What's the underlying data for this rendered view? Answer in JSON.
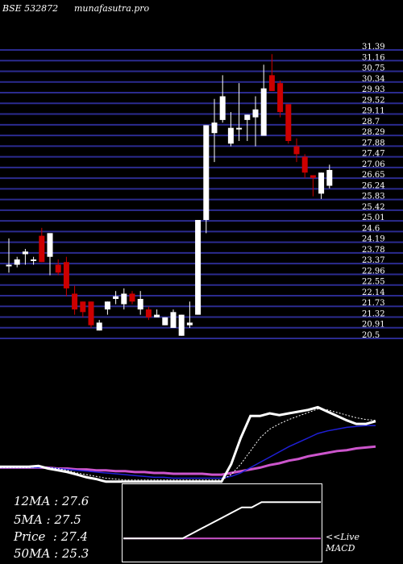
{
  "header": {
    "code": "BSE 532872",
    "site": "munafasutra.pro"
  },
  "chart_data": {
    "type": "candlestick",
    "ylim": [
      20.5,
      31.46
    ],
    "y_ticks": [
      "31.39",
      "31.16",
      "30.75",
      "30.34",
      "29.93",
      "29.52",
      "29.11",
      "28.7",
      "28.29",
      "27.88",
      "27.47",
      "27.06",
      "26.65",
      "26.24",
      "25.83",
      "25.42",
      "25.01",
      "24.6",
      "24.19",
      "23.78",
      "23.37",
      "22.96",
      "22.55",
      "22.14",
      "21.73",
      "21.32",
      "20.91",
      "20.5"
    ],
    "candles": [
      {
        "o": 23.3,
        "h": 24.3,
        "l": 23.0,
        "c": 23.3
      },
      {
        "o": 23.3,
        "h": 23.6,
        "l": 23.2,
        "c": 23.5
      },
      {
        "o": 23.7,
        "h": 23.9,
        "l": 23.3,
        "c": 23.8
      },
      {
        "o": 23.5,
        "h": 23.6,
        "l": 23.3,
        "c": 23.5
      },
      {
        "o": 24.4,
        "h": 24.7,
        "l": 23.4,
        "c": 23.4
      },
      {
        "o": 23.6,
        "h": 24.5,
        "l": 22.9,
        "c": 24.5
      },
      {
        "o": 23.3,
        "h": 23.5,
        "l": 22.9,
        "c": 23.0
      },
      {
        "o": 23.4,
        "h": 23.6,
        "l": 22.1,
        "c": 22.4
      },
      {
        "o": 22.2,
        "h": 22.5,
        "l": 21.4,
        "c": 21.6
      },
      {
        "o": 21.9,
        "h": 21.9,
        "l": 21.3,
        "c": 21.5
      },
      {
        "o": 21.9,
        "h": 21.9,
        "l": 20.9,
        "c": 21.0
      },
      {
        "o": 20.8,
        "h": 21.2,
        "l": 20.8,
        "c": 21.1
      },
      {
        "o": 21.6,
        "h": 21.9,
        "l": 21.4,
        "c": 21.9
      },
      {
        "o": 22.0,
        "h": 22.3,
        "l": 21.8,
        "c": 22.1
      },
      {
        "o": 21.8,
        "h": 22.4,
        "l": 21.6,
        "c": 22.2
      },
      {
        "o": 22.2,
        "h": 22.3,
        "l": 21.8,
        "c": 21.9
      },
      {
        "o": 21.6,
        "h": 22.3,
        "l": 21.4,
        "c": 22.0
      },
      {
        "o": 21.6,
        "h": 21.7,
        "l": 21.2,
        "c": 21.3
      },
      {
        "o": 21.3,
        "h": 21.6,
        "l": 21.3,
        "c": 21.4
      },
      {
        "o": 21.0,
        "h": 21.3,
        "l": 21.0,
        "c": 21.3
      },
      {
        "o": 20.9,
        "h": 21.6,
        "l": 20.9,
        "c": 21.5
      },
      {
        "o": 20.6,
        "h": 21.4,
        "l": 20.6,
        "c": 21.4
      },
      {
        "o": 21.0,
        "h": 21.9,
        "l": 20.9,
        "c": 21.1
      },
      {
        "o": 21.4,
        "h": 25.0,
        "l": 21.4,
        "c": 25.0
      },
      {
        "o": 25.0,
        "h": 28.6,
        "l": 24.5,
        "c": 28.6
      },
      {
        "o": 28.3,
        "h": 29.6,
        "l": 27.2,
        "c": 28.7
      },
      {
        "o": 28.8,
        "h": 30.5,
        "l": 28.7,
        "c": 29.7
      },
      {
        "o": 27.9,
        "h": 29.1,
        "l": 27.8,
        "c": 28.5
      },
      {
        "o": 28.5,
        "h": 30.2,
        "l": 28.0,
        "c": 28.5
      },
      {
        "o": 28.8,
        "h": 29.0,
        "l": 28.0,
        "c": 29.0
      },
      {
        "o": 28.9,
        "h": 29.7,
        "l": 27.8,
        "c": 29.2
      },
      {
        "o": 28.2,
        "h": 30.9,
        "l": 28.2,
        "c": 30.0
      },
      {
        "o": 30.5,
        "h": 31.3,
        "l": 29.9,
        "c": 29.9
      },
      {
        "o": 30.2,
        "h": 30.3,
        "l": 28.9,
        "c": 29.1
      },
      {
        "o": 29.4,
        "h": 29.4,
        "l": 27.9,
        "c": 28.0
      },
      {
        "o": 27.8,
        "h": 28.1,
        "l": 27.2,
        "c": 27.5
      },
      {
        "o": 27.4,
        "h": 27.5,
        "l": 26.6,
        "c": 26.8
      },
      {
        "o": 26.7,
        "h": 26.7,
        "l": 25.9,
        "c": 26.6
      },
      {
        "o": 26.0,
        "h": 26.8,
        "l": 25.8,
        "c": 26.8
      },
      {
        "o": 26.3,
        "h": 27.1,
        "l": 26.2,
        "c": 26.9
      }
    ],
    "ma_panel": {
      "fast": [
        22.7,
        22.7,
        22.7,
        22.7,
        22.8,
        22.5,
        22.3,
        22.1,
        21.8,
        21.5,
        21.3,
        21.0,
        21.0,
        21.0,
        21.0,
        21.0,
        21.0,
        21.0,
        21.0,
        21.0,
        21.0,
        21.0,
        21.0,
        21.0,
        23.0,
        26.0,
        28.5,
        28.5,
        28.8,
        28.6,
        28.8,
        29.0,
        29.2,
        29.5,
        29.0,
        28.5,
        28.0,
        27.6,
        27.6,
        27.9
      ],
      "medium": [
        22.6,
        22.6,
        22.6,
        22.6,
        22.7,
        22.6,
        22.5,
        22.3,
        22.0,
        21.8,
        21.6,
        21.4,
        21.3,
        21.2,
        21.2,
        21.2,
        21.2,
        21.2,
        21.2,
        21.2,
        21.2,
        21.2,
        21.2,
        21.2,
        21.8,
        23.0,
        24.5,
        26.0,
        27.0,
        27.6,
        28.1,
        28.5,
        28.9,
        29.3,
        29.2,
        28.9,
        28.6,
        28.3,
        28.1,
        28.0
      ],
      "slow": [
        22.6,
        22.6,
        22.6,
        22.6,
        22.6,
        22.6,
        22.5,
        22.4,
        22.3,
        22.2,
        22.1,
        22.0,
        21.9,
        21.8,
        21.7,
        21.6,
        21.5,
        21.5,
        21.4,
        21.4,
        21.4,
        21.4,
        21.4,
        21.4,
        21.6,
        22.0,
        22.6,
        23.2,
        23.8,
        24.4,
        25.0,
        25.5,
        26.0,
        26.5,
        26.8,
        27.0,
        27.2,
        27.3,
        27.4,
        27.4
      ],
      "long": [
        22.6,
        22.6,
        22.6,
        22.6,
        22.6,
        22.6,
        22.5,
        22.5,
        22.4,
        22.4,
        22.3,
        22.3,
        22.2,
        22.2,
        22.1,
        22.1,
        22.0,
        22.0,
        21.9,
        21.9,
        21.9,
        21.9,
        21.8,
        21.8,
        22.0,
        22.2,
        22.4,
        22.6,
        22.9,
        23.1,
        23.4,
        23.6,
        23.9,
        24.1,
        24.3,
        24.5,
        24.6,
        24.8,
        24.9,
        25.0
      ]
    },
    "macd_panel": {
      "macd": [
        0.0,
        0.0,
        0.0,
        0.0,
        0.0,
        0.0,
        0.0,
        0.1,
        0.2,
        0.3,
        0.4,
        0.5,
        0.6,
        0.6,
        0.7,
        0.7,
        0.7,
        0.7,
        0.7,
        0.7,
        0.7
      ],
      "signal": [
        0.0,
        0.0,
        0.0,
        0.0,
        0.0,
        0.0,
        0.0,
        0.0,
        0.0,
        0.0,
        0.0,
        0.0,
        0.0,
        0.0,
        0.0,
        0.0,
        0.0,
        0.0,
        0.0,
        0.0,
        0.0
      ],
      "range": [
        -0.4,
        1.0
      ]
    }
  },
  "stats": [
    {
      "label": "12MA",
      "value": ": 27.6"
    },
    {
      "label": "5MA",
      "value": ": 27.5"
    },
    {
      "label": "Price",
      "value": "  : 27.4"
    },
    {
      "label": "50MA",
      "value": ": 25.3"
    }
  ],
  "macd_labels": {
    "live": "<<Live",
    "name": "MACD"
  },
  "colors": {
    "background": "#000000",
    "grid": "#2b2b8f",
    "bull": "#ffffff",
    "bear": "#cc0000",
    "fast_ma": "#ffffff",
    "slow_ma": "#1f1fd6",
    "long_ma": "#cc55cc",
    "macd_line": "#ffffff",
    "signal_line": "#cc55cc"
  }
}
